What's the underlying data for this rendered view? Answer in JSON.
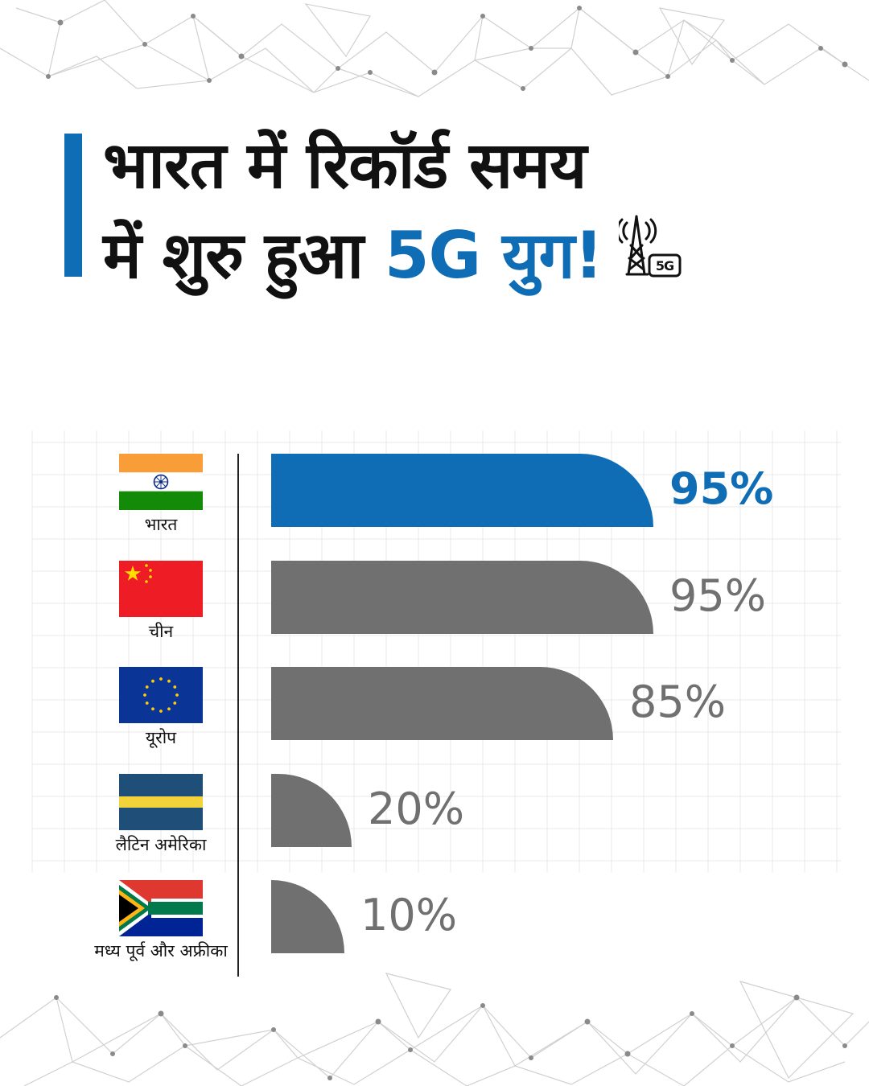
{
  "header": {
    "title_line1": "भारत में रिकॉर्ड समय",
    "title_line2_prefix": "में शुरु हुआ ",
    "title_line2_accent": "5G युग!",
    "icon": "5g-tower-icon",
    "icon_badge": "5G"
  },
  "colors": {
    "accent": "#0f6db6",
    "bar_default": "#707070",
    "text": "#111111"
  },
  "chart_data": {
    "type": "bar",
    "orientation": "horizontal",
    "categories": [
      "भारत",
      "चीन",
      "यूरोप",
      "लैटिन अमेरिका",
      "मध्य पूर्व और अफ्रीका"
    ],
    "values": [
      95,
      95,
      85,
      20,
      10
    ],
    "value_labels": [
      "95%",
      "95%",
      "85%",
      "20%",
      "10%"
    ],
    "highlight_index": 0,
    "flags": [
      "india-flag-icon",
      "china-flag-icon",
      "eu-flag-icon",
      "latin-america-flag-icon",
      "south-africa-flag-icon"
    ],
    "xlim": [
      0,
      100
    ],
    "grid": true
  }
}
